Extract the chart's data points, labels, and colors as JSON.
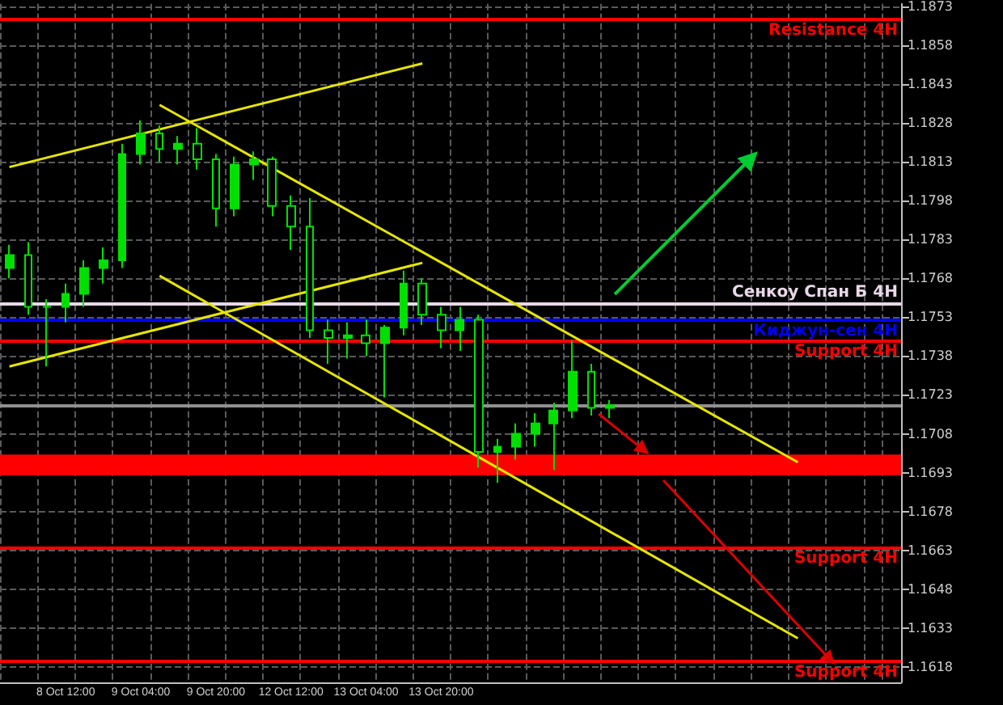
{
  "chart_data": {
    "type": "candlestick",
    "color": "#00e000",
    "categories": [
      null,
      null,
      null,
      "8 Oct 12:00",
      null,
      null,
      null,
      "9 Oct 04:00",
      null,
      null,
      null,
      "9 Oct 20:00",
      null,
      null,
      null,
      "12 Oct 12:00",
      null,
      null,
      null,
      "13 Oct 04:00",
      null,
      null,
      null,
      "13 Oct 20:00",
      null,
      null,
      null,
      null,
      null,
      null,
      null,
      null,
      null,
      null,
      null,
      null,
      null,
      null,
      null,
      null,
      null,
      null,
      null,
      null,
      null,
      null,
      null,
      null
    ],
    "ohlc": [
      [
        1.1772,
        1.1781,
        1.1768,
        1.1777
      ],
      [
        1.1777,
        1.1782,
        1.1754,
        1.1757
      ],
      [
        1.1757,
        1.176,
        1.1734,
        1.1757
      ],
      [
        1.1757,
        1.1766,
        1.1751,
        1.1762
      ],
      [
        1.1762,
        1.1775,
        1.1757,
        1.1772
      ],
      [
        1.1772,
        1.178,
        1.1766,
        1.1775
      ],
      [
        1.1775,
        1.182,
        1.1772,
        1.1816
      ],
      [
        1.1816,
        1.1829,
        1.1812,
        1.1824
      ],
      [
        1.1824,
        1.1827,
        1.1813,
        1.1818
      ],
      [
        1.1818,
        1.1823,
        1.1812,
        1.182
      ],
      [
        1.182,
        1.1826,
        1.181,
        1.1814
      ],
      [
        1.1814,
        1.1816,
        1.1788,
        1.1795
      ],
      [
        1.1795,
        1.1815,
        1.1792,
        1.1812
      ],
      [
        1.1812,
        1.1817,
        1.1806,
        1.1814
      ],
      [
        1.1814,
        1.1815,
        1.1792,
        1.1796
      ],
      [
        1.1796,
        1.18,
        1.1779,
        1.1788
      ],
      [
        1.1788,
        1.1799,
        1.1745,
        1.1748
      ],
      [
        1.1748,
        1.1752,
        1.1735,
        1.1745
      ],
      [
        1.1745,
        1.1751,
        1.1737,
        1.1746
      ],
      [
        1.1746,
        1.1752,
        1.1738,
        1.1743
      ],
      [
        1.1743,
        1.175,
        1.1722,
        1.1749
      ],
      [
        1.1749,
        1.1771,
        1.1746,
        1.1766
      ],
      [
        1.1766,
        1.1768,
        1.175,
        1.1754
      ],
      [
        1.1754,
        1.1757,
        1.1741,
        1.1748
      ],
      [
        1.1748,
        1.1757,
        1.174,
        1.1752
      ],
      [
        1.1752,
        1.1754,
        1.1695,
        1.1701
      ],
      [
        1.1701,
        1.1706,
        1.1689,
        1.1703
      ],
      [
        1.1703,
        1.1712,
        1.1698,
        1.1708
      ],
      [
        1.1708,
        1.1716,
        1.1703,
        1.1712
      ],
      [
        1.1712,
        1.172,
        1.1694,
        1.1717
      ],
      [
        1.1717,
        1.1744,
        1.1714,
        1.1732
      ],
      [
        1.1732,
        1.1735,
        1.1715,
        1.1718
      ],
      [
        1.1718,
        1.1721,
        1.1714,
        1.1719
      ],
      null,
      null,
      null,
      null,
      null,
      null,
      null,
      null,
      null,
      null,
      null,
      null,
      null,
      null,
      null
    ],
    "series": [
      {
        "type": "line",
        "color": "#e6e600",
        "values": [
          1.1811,
          null,
          null,
          null,
          null,
          null,
          null,
          null,
          null,
          null,
          null,
          null,
          null,
          null,
          null,
          null,
          null,
          null,
          null,
          null,
          null,
          null,
          1.1851,
          null,
          null,
          null,
          null,
          null,
          null,
          null,
          null,
          null,
          null,
          null,
          null,
          null,
          null,
          null,
          null,
          null,
          null,
          null,
          null,
          null,
          null,
          null,
          null,
          null
        ]
      },
      {
        "type": "line",
        "color": "#e6e600",
        "values": [
          1.1734,
          null,
          null,
          null,
          null,
          null,
          null,
          null,
          null,
          null,
          null,
          null,
          null,
          null,
          null,
          null,
          null,
          null,
          null,
          null,
          null,
          null,
          1.1774,
          null,
          null,
          null,
          null,
          null,
          null,
          null,
          null,
          null,
          null,
          null,
          null,
          null,
          null,
          null,
          null,
          null,
          null,
          null,
          null,
          null,
          null,
          null,
          null,
          null
        ]
      },
      {
        "type": "line",
        "color": "#e6e600",
        "values": [
          null,
          null,
          null,
          null,
          null,
          null,
          null,
          null,
          1.1835,
          null,
          null,
          null,
          null,
          null,
          null,
          null,
          null,
          null,
          null,
          null,
          null,
          null,
          null,
          null,
          null,
          null,
          null,
          null,
          null,
          null,
          null,
          null,
          null,
          null,
          null,
          null,
          null,
          null,
          null,
          null,
          null,
          null,
          1.1697,
          null,
          null,
          null,
          null,
          null
        ]
      },
      {
        "type": "line",
        "color": "#e6e600",
        "values": [
          null,
          null,
          null,
          null,
          null,
          null,
          null,
          null,
          1.1769,
          null,
          null,
          null,
          null,
          null,
          null,
          null,
          null,
          null,
          null,
          null,
          null,
          null,
          null,
          null,
          null,
          null,
          null,
          null,
          null,
          null,
          null,
          null,
          null,
          null,
          null,
          null,
          null,
          null,
          null,
          null,
          null,
          null,
          1.1629,
          null,
          null,
          null,
          null,
          null
        ]
      }
    ],
    "ylim": [
      1.1612,
      1.1874
    ],
    "yticks": [
      1.1618,
      1.1633,
      1.1648,
      1.1663,
      1.1678,
      1.1693,
      1.1708,
      1.1723,
      1.1738,
      1.1753,
      1.1768,
      1.1783,
      1.1798,
      1.1813,
      1.1828,
      1.1843,
      1.1858,
      1.1873
    ],
    "grid": true,
    "marker": "none",
    "ref_lines": [
      {
        "axis": "y",
        "value": 1.1868,
        "label": "Resistance 4H",
        "color": "#ff0000"
      },
      {
        "axis": "y",
        "value": 1.1758,
        "label": "Сенкоу Спан Б 4H",
        "color": "#e8d8e8"
      },
      {
        "axis": "y",
        "value": 1.1752,
        "label": "Киджун-сен 4H",
        "color": "#0000ff"
      },
      {
        "axis": "y",
        "value": 1.1744,
        "label": "Support 4H",
        "color": "#ff0000"
      },
      {
        "axis": "y",
        "value": 1.1664,
        "label": "Support 4H",
        "color": "#ff0000"
      },
      {
        "axis": "y",
        "value": 1.162,
        "label": "Support 4H",
        "color": "#ff0000"
      },
      {
        "axis": "y",
        "value": 1.1719,
        "color": "#909090"
      }
    ],
    "bands": [
      {
        "axis": "y",
        "from": 1.1692,
        "to": 1.17,
        "color": "#ff0000"
      }
    ]
  }
}
